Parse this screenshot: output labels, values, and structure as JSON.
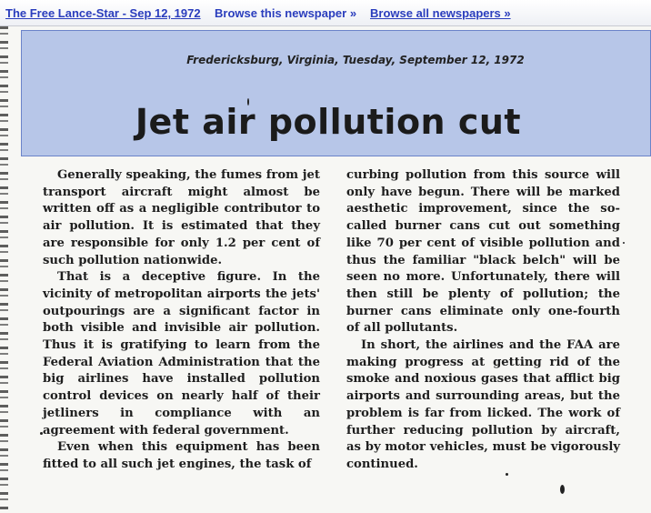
{
  "topbar": {
    "issue_link": "The Free Lance-Star - Sep 12, 1972",
    "browse_paper": "Browse this newspaper »",
    "browse_all": "Browse all newspapers »"
  },
  "article": {
    "dateline": "Fredericksburg, Virginia, Tuesday, September 12, 1972",
    "headline": "Jet air pollution cut",
    "col1": [
      "Generally speaking, the fumes from jet transport aircraft might almost be written off as a negligible contributor to air pollution. It is estimated that they are responsible for only 1.2 per cent of such pollution nationwide.",
      "That is a deceptive figure. In the vicinity of metropolitan airports the jets' outpourings are a significant factor in both visible and invisible air pollution. Thus it is gratifying to learn from the Federal Aviation Administration that the big airlines have installed pollution control devices on nearly half of their jetliners in compliance with an agreement with federal government.",
      "Even when this equipment has been fitted to all such jet engines, the task of"
    ],
    "col2": [
      "curbing pollution from this source will only have begun. There will be marked aesthetic improvement, since the so-called burner cans cut out something like 70 per cent of visible pollution and thus the familiar \"black belch\" will be seen no more. Unfortunately, there will then still be plenty of pollution; the burner cans eliminate only one-fourth of all pollutants.",
      "In short, the airlines and the FAA are making progress at getting rid of the smoke and noxious gases that afflict big airports and surrounding areas, but the problem is far from licked. The work of further reducing pollution by aircraft, as by motor vehicles, must be vigorously continued."
    ]
  }
}
